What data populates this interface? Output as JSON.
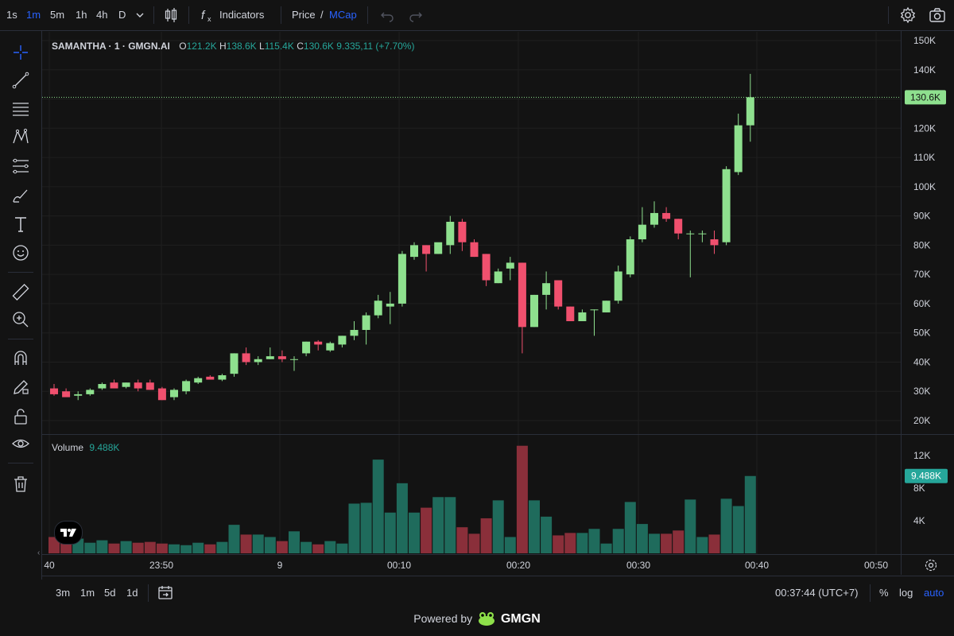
{
  "toolbar": {
    "intervals": [
      "1s",
      "1m",
      "5m",
      "1h",
      "4h",
      "D"
    ],
    "active_interval": "1m",
    "indicators_label": "Indicators",
    "price_label": "Price",
    "slash": "/",
    "mcap_label": "MCap"
  },
  "legend": {
    "symbol": "SAMANTHA · 1 · GMGN.AI",
    "open_label": "O",
    "open": "121.2K",
    "high_label": "H",
    "high": "138.6K",
    "low_label": "L",
    "low": "115.4K",
    "close_label": "C",
    "close": "130.6K",
    "change": "9.335,11 (+7.70%)"
  },
  "volume_legend": {
    "label": "Volume",
    "value": "9.488K"
  },
  "price_axis": {
    "ticks": [
      "150K",
      "140K",
      "130K",
      "120K",
      "110K",
      "100K",
      "90K",
      "80K",
      "70K",
      "60K",
      "50K",
      "40K",
      "30K",
      "20K"
    ],
    "last_price_label": "130.6K",
    "last_price": 130.6
  },
  "volume_axis": {
    "ticks": [
      "12K",
      "8K",
      "4K"
    ],
    "last_volume_label": "9.488K",
    "last_volume": 9.488
  },
  "time_axis": {
    "labels": [
      "40",
      "23:50",
      "9",
      "00:10",
      "00:20",
      "00:30",
      "00:40",
      "00:50"
    ]
  },
  "bottom": {
    "ranges": [
      "3m",
      "1m",
      "5d",
      "1d"
    ],
    "clock": "00:37:44 (UTC+7)",
    "percent": "%",
    "log": "log",
    "auto": "auto"
  },
  "powered": {
    "prefix": "Powered by",
    "brand": "GMGN"
  },
  "colors": {
    "up": "#26a69a",
    "down": "#ef5350",
    "candle_up": "#8ee08e",
    "candle_down": "#f0506e",
    "background": "#131313",
    "grid": "#1f1f1f",
    "accent": "#2962ff"
  },
  "chart_data": {
    "type": "candlestick",
    "x_unit": "minutes",
    "time_range": [
      "23:40",
      "00:37"
    ],
    "price_range": [
      15,
      152
    ],
    "volume_range": [
      0,
      14
    ],
    "candles": [
      {
        "o": 31,
        "h": 32.5,
        "l": 28.5,
        "c": 29,
        "v": 2.0
      },
      {
        "o": 30,
        "h": 31,
        "l": 28.5,
        "c": 28,
        "v": 1.4
      },
      {
        "o": 28.5,
        "h": 30,
        "l": 27,
        "c": 29,
        "v": 1.8
      },
      {
        "o": 29,
        "h": 31,
        "l": 28.5,
        "c": 30.5,
        "v": 1.3
      },
      {
        "o": 31,
        "h": 33,
        "l": 30.5,
        "c": 32.5,
        "v": 1.6
      },
      {
        "o": 33,
        "h": 34,
        "l": 31,
        "c": 31,
        "v": 1.2
      },
      {
        "o": 31.5,
        "h": 33,
        "l": 31,
        "c": 33,
        "v": 1.5
      },
      {
        "o": 33,
        "h": 34,
        "l": 30,
        "c": 31,
        "v": 1.3
      },
      {
        "o": 33,
        "h": 34,
        "l": 30.5,
        "c": 30.5,
        "v": 1.4
      },
      {
        "o": 31,
        "h": 31.5,
        "l": 27,
        "c": 27,
        "v": 1.2
      },
      {
        "o": 28,
        "h": 31,
        "l": 27,
        "c": 30.5,
        "v": 1.1
      },
      {
        "o": 30,
        "h": 34,
        "l": 29,
        "c": 33.5,
        "v": 1.0
      },
      {
        "o": 33,
        "h": 35,
        "l": 32.5,
        "c": 34.5,
        "v": 1.3
      },
      {
        "o": 35,
        "h": 35.5,
        "l": 34,
        "c": 34,
        "v": 1.1
      },
      {
        "o": 34,
        "h": 36,
        "l": 33.5,
        "c": 35.5,
        "v": 1.4
      },
      {
        "o": 36,
        "h": 43,
        "l": 35,
        "c": 43,
        "v": 3.5
      },
      {
        "o": 43,
        "h": 45,
        "l": 39,
        "c": 40,
        "v": 2.3
      },
      {
        "o": 40,
        "h": 42,
        "l": 39,
        "c": 41,
        "v": 2.3
      },
      {
        "o": 41,
        "h": 45,
        "l": 41,
        "c": 42,
        "v": 2.0
      },
      {
        "o": 42,
        "h": 44,
        "l": 40,
        "c": 41,
        "v": 1.5
      },
      {
        "o": 41,
        "h": 42,
        "l": 37,
        "c": 41,
        "v": 2.7
      },
      {
        "o": 43,
        "h": 47,
        "l": 42,
        "c": 47,
        "v": 1.4
      },
      {
        "o": 47,
        "h": 47.5,
        "l": 44,
        "c": 46,
        "v": 1.1
      },
      {
        "o": 44,
        "h": 47,
        "l": 43.5,
        "c": 46.5,
        "v": 1.5
      },
      {
        "o": 46,
        "h": 49,
        "l": 45,
        "c": 49,
        "v": 1.2
      },
      {
        "o": 49,
        "h": 54,
        "l": 47.5,
        "c": 51,
        "v": 6.1
      },
      {
        "o": 51,
        "h": 57,
        "l": 46,
        "c": 56,
        "v": 6.2
      },
      {
        "o": 56,
        "h": 63,
        "l": 55,
        "c": 61,
        "v": 11.5
      },
      {
        "o": 59,
        "h": 64,
        "l": 53,
        "c": 60,
        "v": 5.0
      },
      {
        "o": 60,
        "h": 78,
        "l": 59,
        "c": 77,
        "v": 8.6
      },
      {
        "o": 76,
        "h": 81,
        "l": 75,
        "c": 80,
        "v": 5.0
      },
      {
        "o": 80,
        "h": 80,
        "l": 71,
        "c": 77,
        "v": 5.6
      },
      {
        "o": 77,
        "h": 80.5,
        "l": 77,
        "c": 81,
        "v": 6.9
      },
      {
        "o": 80,
        "h": 90,
        "l": 77,
        "c": 88,
        "v": 6.9
      },
      {
        "o": 88,
        "h": 89,
        "l": 78,
        "c": 81,
        "v": 3.2
      },
      {
        "o": 81,
        "h": 82,
        "l": 76,
        "c": 76,
        "v": 2.4
      },
      {
        "o": 77,
        "h": 77,
        "l": 66,
        "c": 68,
        "v": 4.3
      },
      {
        "o": 67,
        "h": 72,
        "l": 67,
        "c": 71,
        "v": 6.5
      },
      {
        "o": 72,
        "h": 76,
        "l": 68,
        "c": 74,
        "v": 2.0
      },
      {
        "o": 74,
        "h": 74,
        "l": 43,
        "c": 52,
        "v": 13.2
      },
      {
        "o": 52,
        "h": 63,
        "l": 52,
        "c": 63,
        "v": 6.5
      },
      {
        "o": 63,
        "h": 71,
        "l": 58,
        "c": 67,
        "v": 4.5
      },
      {
        "o": 68,
        "h": 68,
        "l": 58,
        "c": 59,
        "v": 2.2
      },
      {
        "o": 59,
        "h": 59,
        "l": 54,
        "c": 54,
        "v": 2.5
      },
      {
        "o": 54,
        "h": 58,
        "l": 54,
        "c": 57,
        "v": 2.5
      },
      {
        "o": 58,
        "h": 58,
        "l": 49,
        "c": 58,
        "v": 3.0
      },
      {
        "o": 57,
        "h": 61,
        "l": 57,
        "c": 61,
        "v": 1.2
      },
      {
        "o": 61,
        "h": 73,
        "l": 60,
        "c": 71,
        "v": 3.0
      },
      {
        "o": 70,
        "h": 83,
        "l": 69,
        "c": 82,
        "v": 6.3
      },
      {
        "o": 82,
        "h": 93,
        "l": 81,
        "c": 87,
        "v": 3.6
      },
      {
        "o": 87,
        "h": 95,
        "l": 86,
        "c": 91,
        "v": 2.4
      },
      {
        "o": 91,
        "h": 93,
        "l": 88,
        "c": 89,
        "v": 2.4
      },
      {
        "o": 89,
        "h": 89,
        "l": 82,
        "c": 84,
        "v": 2.8
      },
      {
        "o": 84,
        "h": 85,
        "l": 69,
        "c": 84,
        "v": 6.6
      },
      {
        "o": 84,
        "h": 85,
        "l": 81,
        "c": 84,
        "v": 2.0
      },
      {
        "o": 82,
        "h": 85,
        "l": 77,
        "c": 80,
        "v": 2.3
      },
      {
        "o": 81,
        "h": 107,
        "l": 80,
        "c": 106,
        "v": 6.7
      },
      {
        "o": 105,
        "h": 125,
        "l": 104,
        "c": 121,
        "v": 5.8
      },
      {
        "o": 121,
        "h": 138.6,
        "l": 115.4,
        "c": 130.6,
        "v": 9.488
      }
    ]
  }
}
